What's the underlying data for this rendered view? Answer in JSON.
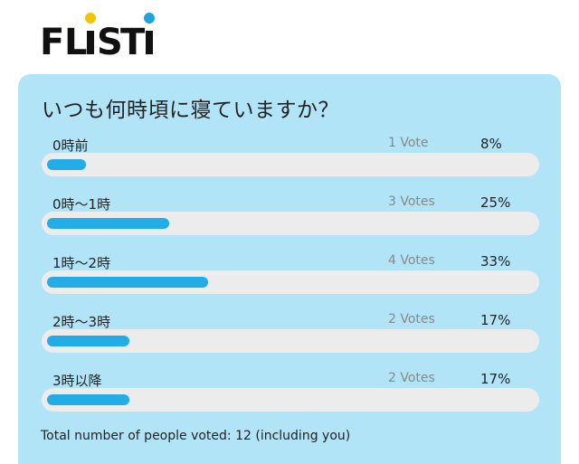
{
  "logo": {
    "text": "FLiSTi",
    "dot_colors": [
      "#f4c400",
      "#1ea3dc"
    ]
  },
  "poll": {
    "question": "いつも何時頃に寝ていますか？",
    "options": [
      {
        "label": "0時前",
        "votes": "1 Vote",
        "percent": "8%",
        "share": 0.08
      },
      {
        "label": "0時〜1時",
        "votes": "3 Votes",
        "percent": "25%",
        "share": 0.25
      },
      {
        "label": "1時〜2時",
        "votes": "4 Votes",
        "percent": "33%",
        "share": 0.33
      },
      {
        "label": "2時〜3時",
        "votes": "2 Votes",
        "percent": "17%",
        "share": 0.17
      },
      {
        "label": "3時以降",
        "votes": "2 Votes",
        "percent": "17%",
        "share": 0.17
      }
    ],
    "total_text": "Total number of people voted: 12 (including you)"
  },
  "colors": {
    "card_bg": "#b2e4f8",
    "bar_fill": "#23ade6",
    "track": "#ececec"
  }
}
